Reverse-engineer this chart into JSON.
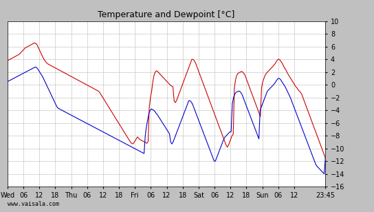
{
  "title": "Temperature and Dewpoint [°C]",
  "ylabel": "",
  "ylim": [
    -16,
    10
  ],
  "yticks": [
    -16,
    -14,
    -12,
    -10,
    -8,
    -6,
    -4,
    -2,
    0,
    2,
    4,
    6,
    8,
    10
  ],
  "watermark": "www.vaisala.com",
  "temp_color": "#cc0000",
  "dew_color": "#0000cc",
  "bg_color": "#ffffff",
  "outer_bg": "#c0c0c0",
  "grid_color": "#c8c8c8",
  "x_tick_labels": [
    "Wed",
    "06",
    "12",
    "18",
    "Thu",
    "06",
    "12",
    "18",
    "Fri",
    "06",
    "12",
    "18",
    "Sat",
    "06",
    "12",
    "18",
    "Sun",
    "06",
    "12",
    "23:45"
  ],
  "x_tick_positions": [
    0,
    6,
    12,
    18,
    24,
    30,
    36,
    42,
    48,
    54,
    60,
    66,
    72,
    78,
    84,
    90,
    96,
    102,
    108,
    119.75
  ],
  "temp_data": [
    3.8,
    3.9,
    4.0,
    4.1,
    4.2,
    4.3,
    4.4,
    4.5,
    4.6,
    4.7,
    4.8,
    5.0,
    5.2,
    5.4,
    5.6,
    5.8,
    5.9,
    6.0,
    6.1,
    6.2,
    6.3,
    6.4,
    6.5,
    6.6,
    6.5,
    6.3,
    5.9,
    5.5,
    5.1,
    4.7,
    4.3,
    4.0,
    3.7,
    3.5,
    3.3,
    3.2,
    3.1,
    3.0,
    2.9,
    2.8,
    2.7,
    2.6,
    2.5,
    2.4,
    2.3,
    2.2,
    2.1,
    2.0,
    1.9,
    1.8,
    1.7,
    1.6,
    1.5,
    1.4,
    1.3,
    1.2,
    1.1,
    1.0,
    0.9,
    0.8,
    0.7,
    0.6,
    0.5,
    0.4,
    0.3,
    0.2,
    0.1,
    0.0,
    -0.1,
    -0.2,
    -0.3,
    -0.4,
    -0.5,
    -0.6,
    -0.7,
    -0.8,
    -0.9,
    -1.0,
    -1.2,
    -1.5,
    -1.8,
    -2.1,
    -2.4,
    -2.7,
    -3.0,
    -3.3,
    -3.6,
    -3.9,
    -4.2,
    -4.5,
    -4.8,
    -5.1,
    -5.4,
    -5.7,
    -6.0,
    -6.3,
    -6.6,
    -6.9,
    -7.2,
    -7.5,
    -7.8,
    -8.1,
    -8.4,
    -8.7,
    -9.0,
    -9.2,
    -9.3,
    -9.1,
    -8.8,
    -8.5,
    -8.2,
    -8.4,
    -8.6,
    -8.7,
    -8.8,
    -8.9,
    -9.0,
    -9.1,
    -9.2,
    -8.9,
    -3.5,
    -2.0,
    -1.0,
    0.5,
    1.5,
    2.0,
    2.2,
    2.1,
    1.9,
    1.7,
    1.5,
    1.3,
    1.1,
    0.9,
    0.7,
    0.5,
    0.3,
    0.1,
    -0.1,
    -0.2,
    -0.3,
    -2.5,
    -2.8,
    -2.5,
    -2.0,
    -1.5,
    -1.0,
    -0.5,
    0.0,
    0.5,
    1.0,
    1.5,
    2.0,
    2.5,
    3.0,
    3.5,
    4.0,
    4.0,
    3.8,
    3.5,
    3.0,
    2.5,
    2.0,
    1.5,
    1.0,
    0.5,
    0.0,
    -0.5,
    -1.0,
    -1.5,
    -2.0,
    -2.5,
    -3.0,
    -3.5,
    -4.0,
    -4.5,
    -5.0,
    -5.5,
    -6.0,
    -6.5,
    -7.0,
    -7.5,
    -8.0,
    -8.5,
    -9.0,
    -9.5,
    -9.8,
    -9.5,
    -9.0,
    -8.5,
    -8.0,
    -7.8,
    -0.5,
    0.8,
    1.5,
    1.8,
    1.9,
    2.0,
    2.1,
    2.0,
    1.8,
    1.5,
    1.0,
    0.5,
    0.0,
    -0.5,
    -1.0,
    -1.5,
    -2.0,
    -2.5,
    -3.0,
    -3.5,
    -4.0,
    -4.5,
    -5.0,
    -0.5,
    0.5,
    1.0,
    1.5,
    1.8,
    2.0,
    2.2,
    2.4,
    2.6,
    2.8,
    3.0,
    3.2,
    3.5,
    3.8,
    4.0,
    4.0,
    3.8,
    3.5,
    3.2,
    2.8,
    2.5,
    2.2,
    1.8,
    1.5,
    1.2,
    0.9,
    0.6,
    0.3,
    0.0,
    -0.3,
    -0.5,
    -0.8,
    -1.0,
    -1.2,
    -1.5,
    -2.0,
    -2.5,
    -3.0,
    -3.5,
    -4.0,
    -4.5,
    -5.0,
    -5.5,
    -6.0,
    -6.5,
    -7.0,
    -7.5,
    -8.0,
    -8.5,
    -9.0,
    -9.5,
    -10.0,
    -10.5,
    -11.0,
    -11.5
  ],
  "dew_data": [
    0.5,
    0.6,
    0.7,
    0.8,
    0.9,
    1.0,
    1.1,
    1.2,
    1.3,
    1.4,
    1.5,
    1.6,
    1.7,
    1.8,
    1.9,
    2.0,
    2.1,
    2.2,
    2.3,
    2.4,
    2.5,
    2.6,
    2.7,
    2.8,
    2.7,
    2.5,
    2.2,
    1.9,
    1.6,
    1.3,
    0.9,
    0.5,
    0.1,
    -0.3,
    -0.7,
    -1.1,
    -1.5,
    -1.9,
    -2.3,
    -2.7,
    -3.1,
    -3.5,
    -3.7,
    -3.8,
    -3.9,
    -4.0,
    -4.1,
    -4.2,
    -4.3,
    -4.4,
    -4.5,
    -4.6,
    -4.7,
    -4.8,
    -4.9,
    -5.0,
    -5.1,
    -5.2,
    -5.3,
    -5.4,
    -5.5,
    -5.6,
    -5.7,
    -5.8,
    -5.9,
    -6.0,
    -6.1,
    -6.2,
    -6.3,
    -6.4,
    -6.5,
    -6.6,
    -6.7,
    -6.8,
    -6.9,
    -7.0,
    -7.1,
    -7.2,
    -7.3,
    -7.4,
    -7.5,
    -7.6,
    -7.7,
    -7.8,
    -7.9,
    -8.0,
    -8.1,
    -8.2,
    -8.3,
    -8.4,
    -8.5,
    -8.6,
    -8.7,
    -8.8,
    -8.9,
    -9.0,
    -9.1,
    -9.2,
    -9.3,
    -9.4,
    -9.5,
    -9.6,
    -9.7,
    -9.8,
    -9.9,
    -10.0,
    -10.1,
    -10.2,
    -10.3,
    -10.4,
    -10.5,
    -10.6,
    -10.7,
    -10.8,
    -8.0,
    -6.5,
    -5.5,
    -4.5,
    -4.0,
    -3.8,
    -3.9,
    -4.0,
    -4.2,
    -4.5,
    -4.7,
    -5.0,
    -5.3,
    -5.6,
    -5.9,
    -6.2,
    -6.5,
    -6.8,
    -7.1,
    -7.4,
    -7.7,
    -9.0,
    -9.3,
    -9.0,
    -8.5,
    -8.0,
    -7.5,
    -7.0,
    -6.5,
    -6.0,
    -5.5,
    -5.0,
    -4.5,
    -4.0,
    -3.5,
    -3.0,
    -2.5,
    -2.5,
    -2.7,
    -3.0,
    -3.5,
    -4.0,
    -4.5,
    -5.0,
    -5.5,
    -6.0,
    -6.5,
    -7.0,
    -7.5,
    -8.0,
    -8.5,
    -9.0,
    -9.5,
    -10.0,
    -10.5,
    -11.0,
    -11.5,
    -12.0,
    -12.0,
    -11.5,
    -11.0,
    -10.5,
    -10.0,
    -9.5,
    -9.0,
    -8.5,
    -8.2,
    -8.0,
    -7.8,
    -7.6,
    -7.4,
    -7.4,
    -3.0,
    -2.0,
    -1.5,
    -1.2,
    -1.1,
    -1.0,
    -1.0,
    -1.2,
    -1.5,
    -2.0,
    -2.5,
    -3.0,
    -3.5,
    -4.0,
    -4.5,
    -5.0,
    -5.5,
    -6.0,
    -6.5,
    -7.0,
    -7.5,
    -8.0,
    -8.5,
    -4.0,
    -3.5,
    -3.0,
    -2.5,
    -2.0,
    -1.5,
    -1.0,
    -0.8,
    -0.6,
    -0.4,
    -0.2,
    0.0,
    0.2,
    0.5,
    0.8,
    1.0,
    1.0,
    0.8,
    0.5,
    0.2,
    -0.1,
    -0.4,
    -0.8,
    -1.2,
    -1.6,
    -2.0,
    -2.5,
    -3.0,
    -3.5,
    -4.0,
    -4.5,
    -5.0,
    -5.5,
    -6.0,
    -6.5,
    -7.0,
    -7.5,
    -8.0,
    -8.5,
    -9.0,
    -9.5,
    -10.0,
    -10.5,
    -11.0,
    -11.5,
    -12.0,
    -12.5,
    -12.8,
    -13.0,
    -13.2,
    -13.4,
    -13.6,
    -13.8,
    -14.0,
    -11.5
  ]
}
